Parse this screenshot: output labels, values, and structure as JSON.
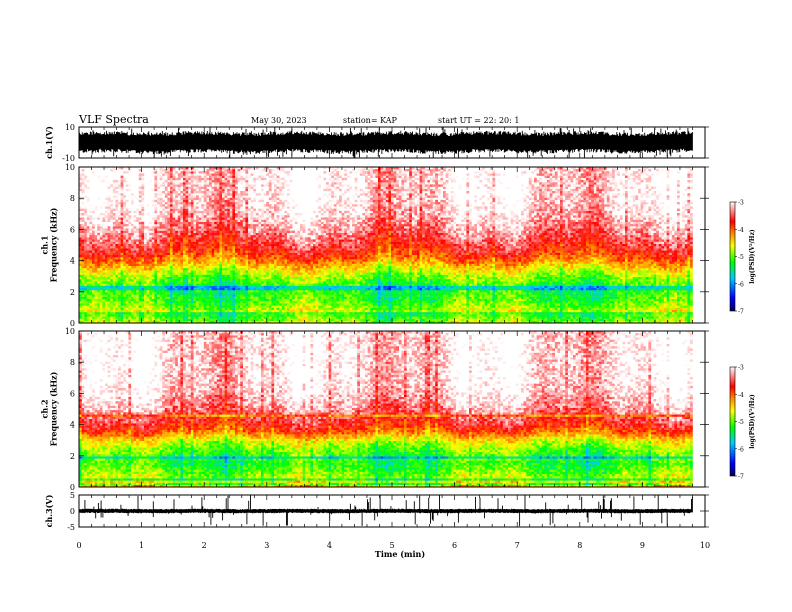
{
  "header": {
    "title": "VLF Spectra",
    "date": "May 30, 2023",
    "station": "station= KAP",
    "start": "start  UT  =   22: 20: 1"
  },
  "chart_data": [
    {
      "type": "line",
      "name": "ch.1 waveform",
      "ylabel": "ch.1(V)",
      "ylim": [
        -10,
        10
      ],
      "yticks": [
        "10",
        "-10"
      ],
      "xlim": [
        0,
        10
      ],
      "x_extent_min": 9.8,
      "band": {
        "center": 0,
        "lower": -7,
        "upper": 7
      }
    },
    {
      "type": "heatmap",
      "name": "ch.1 spectrogram",
      "ylabel": "ch.1\nFrequency (kHz)",
      "ylim": [
        0,
        10
      ],
      "yticks": [
        "0",
        "2",
        "4",
        "6",
        "8",
        "10"
      ],
      "xlim": [
        0,
        10
      ],
      "x_extent_min": 9.8,
      "colorbar": {
        "label": "log(PSD)(V²/Hz)",
        "range": [
          -7,
          -3
        ],
        "ticks": [
          "-3",
          "-4",
          "-5",
          "-6",
          "-7"
        ]
      },
      "profile_freq_khz": [
        0,
        0.3,
        0.6,
        1.0,
        1.5,
        2.0,
        2.5,
        3.0,
        3.5,
        4.0,
        4.5,
        5.0,
        6.0,
        7.0,
        8.0,
        10.0
      ],
      "profile_log_psd": [
        -4.2,
        -4.4,
        -4.6,
        -4.9,
        -5.1,
        -5.2,
        -5.1,
        -4.9,
        -4.5,
        -4.1,
        -3.8,
        -3.6,
        -3.3,
        -3.1,
        -3.0,
        -3.0
      ],
      "lines_khz": [
        0.15,
        0.35,
        0.55,
        2.25
      ]
    },
    {
      "type": "heatmap",
      "name": "ch.2 spectrogram",
      "ylabel": "ch.2\nFrequency (kHz)",
      "ylim": [
        0,
        10
      ],
      "yticks": [
        "0",
        "2",
        "4",
        "6",
        "8",
        "10"
      ],
      "xlim": [
        0,
        10
      ],
      "x_extent_min": 9.8,
      "colorbar": {
        "label": "log(PSD)(V²/Hz)",
        "range": [
          -7,
          -3
        ],
        "ticks": [
          "-3",
          "-4",
          "-5",
          "-6",
          "-7"
        ]
      },
      "profile_freq_khz": [
        0,
        0.3,
        0.6,
        1.0,
        1.5,
        2.0,
        2.5,
        3.0,
        3.5,
        4.0,
        4.5,
        5.0,
        6.0,
        7.0,
        8.0,
        10.0
      ],
      "profile_log_psd": [
        -4.3,
        -4.5,
        -4.8,
        -5.0,
        -5.2,
        -5.1,
        -4.9,
        -4.6,
        -4.0,
        -3.7,
        -3.5,
        -3.3,
        -3.1,
        -3.0,
        -3.0,
        -3.0
      ],
      "lines_khz": [
        0.2,
        0.45,
        1.9,
        4.6
      ]
    },
    {
      "type": "line",
      "name": "ch.3 waveform",
      "ylabel": "ch.3(V)",
      "ylim": [
        -5,
        5
      ],
      "yticks": [
        "5",
        "0",
        "-5"
      ],
      "xlim": [
        0,
        10
      ],
      "x_extent_min": 9.8,
      "band": {
        "center": 0,
        "lower": -0.7,
        "upper": 0.7
      }
    }
  ],
  "xaxis": {
    "label": "Time (min)",
    "ticks": [
      "0",
      "1",
      "2",
      "3",
      "4",
      "5",
      "6",
      "7",
      "8",
      "9",
      "10"
    ]
  },
  "colors": {
    "scale": [
      "#00008b",
      "#0000ff",
      "#00c8ff",
      "#00ff00",
      "#ffff00",
      "#ff7f00",
      "#ff0000",
      "#ffffff"
    ],
    "trace": "#000000"
  }
}
